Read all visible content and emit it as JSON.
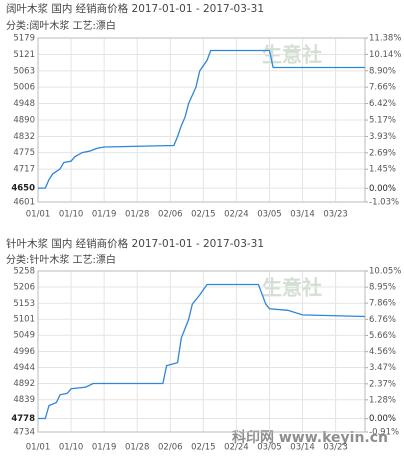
{
  "chart_data": [
    {
      "type": "line",
      "title": "阔叶木浆 国内 经销商价格 2017-01-01 - 2017-03-31",
      "subtitle": "分类:阔叶木浆 工艺:漂白",
      "watermark": "生意社",
      "color": "#2f86d8",
      "grid": true,
      "x": [
        "01/01",
        "01/03",
        "01/04",
        "01/05",
        "01/07",
        "01/08",
        "01/10",
        "01/11",
        "01/13",
        "01/15",
        "01/17",
        "01/19",
        "02/07",
        "02/08",
        "02/09",
        "02/10",
        "02/11",
        "02/13",
        "02/14",
        "02/16",
        "02/17",
        "03/05",
        "03/06",
        "03/31"
      ],
      "values": [
        4650,
        4650,
        4680,
        4700,
        4717,
        4740,
        4745,
        4760,
        4775,
        4780,
        4790,
        4795,
        4800,
        4832,
        4870,
        4900,
        4948,
        5006,
        5063,
        5100,
        5135,
        5135,
        5075,
        5075
      ],
      "xlim": [
        "01/01",
        "03/31"
      ],
      "xticks": [
        "01/01",
        "01/10",
        "01/19",
        "01/28",
        "02/06",
        "02/15",
        "02/24",
        "03/05",
        "03/14",
        "03/23"
      ],
      "ylim": [
        4601,
        5179
      ],
      "yticks": [
        5179,
        5121,
        5063,
        5006,
        4948,
        4890,
        4832,
        4775,
        4717,
        4650,
        4601
      ],
      "y2lim": [
        -1.03,
        11.38
      ],
      "y2ticks": [
        {
          "value": 11.38,
          "label": "11.38%"
        },
        {
          "value": 10.14,
          "label": "10.14%"
        },
        {
          "value": 8.9,
          "label": "8.90%"
        },
        {
          "value": 7.66,
          "label": "7.66%"
        },
        {
          "value": 6.42,
          "label": "6.42%"
        },
        {
          "value": 5.17,
          "label": "5.17%"
        },
        {
          "value": 3.93,
          "label": "3.93%"
        },
        {
          "value": 2.69,
          "label": "2.69%"
        },
        {
          "value": 1.45,
          "label": "1.45%"
        },
        {
          "value": 0,
          "label": "0.00%"
        },
        {
          "value": -1.03,
          "label": "-1.03%"
        }
      ]
    },
    {
      "type": "line",
      "title": "针叶木浆 国内 经销商价格 2017-01-01 - 2017-03-31",
      "subtitle": "分类:针叶木浆 工艺:漂白",
      "watermark": "生意社",
      "watermark2": "科印网 www.keyin.cn",
      "color": "#2f86d8",
      "grid": true,
      "x": [
        "01/01",
        "01/03",
        "01/04",
        "01/06",
        "01/07",
        "01/09",
        "01/10",
        "01/14",
        "01/16",
        "02/04",
        "02/05",
        "02/08",
        "02/09",
        "02/11",
        "02/12",
        "02/14",
        "02/16",
        "03/02",
        "03/04",
        "03/05",
        "03/10",
        "03/14",
        "03/31"
      ],
      "values": [
        4778,
        4778,
        4820,
        4830,
        4855,
        4860,
        4875,
        4880,
        4892,
        4892,
        4950,
        4960,
        5040,
        5100,
        5150,
        5180,
        5214,
        5214,
        5150,
        5135,
        5130,
        5115,
        5110
      ],
      "xlim": [
        "01/01",
        "03/31"
      ],
      "xticks": [
        "01/01",
        "01/10",
        "01/19",
        "01/28",
        "02/06",
        "02/15",
        "02/24",
        "03/05",
        "03/14",
        "03/23"
      ],
      "ylim": [
        4734,
        5258
      ],
      "yticks": [
        5258,
        5206,
        5153,
        5101,
        5049,
        4996,
        4944,
        4892,
        4839,
        4778,
        4734
      ],
      "y2lim": [
        -0.91,
        10.05
      ],
      "y2ticks": [
        {
          "value": 10.05,
          "label": "10.05%"
        },
        {
          "value": 8.95,
          "label": "8.95%"
        },
        {
          "value": 7.86,
          "label": "7.86%"
        },
        {
          "value": 6.76,
          "label": "6.76%"
        },
        {
          "value": 5.66,
          "label": "5.66%"
        },
        {
          "value": 4.56,
          "label": "4.56%"
        },
        {
          "value": 3.47,
          "label": "3.47%"
        },
        {
          "value": 2.37,
          "label": "2.37%"
        },
        {
          "value": 1.28,
          "label": "1.28%"
        },
        {
          "value": 0,
          "label": "0.00%"
        },
        {
          "value": -0.91,
          "label": "-0.91%"
        }
      ]
    }
  ]
}
